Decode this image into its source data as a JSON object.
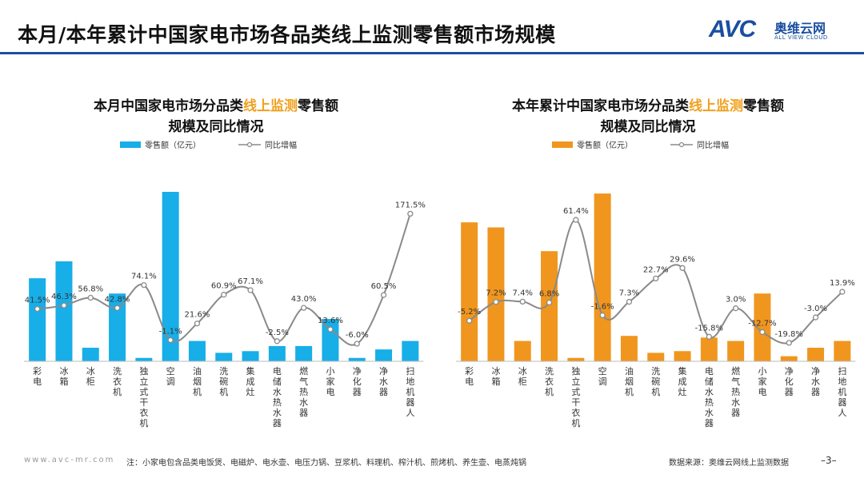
{
  "page": {
    "title": "本月/本年累计中国家电市场各品类线上监测零售额市场规模",
    "logo_mark": "AVC",
    "logo_cn": "奥维云网",
    "logo_en": "ALL VIEW CLOUD"
  },
  "footer": {
    "website": "www.avc-mr.com",
    "note": "注：小家电包含品类电饭煲、电磁炉、电水壶、电压力锅、豆浆机、料理机、榨汁机、煎烤机、养生壶、电蒸炖锅",
    "source": "数据来源：奥维云网线上监测数据",
    "page_number": "–3–"
  },
  "chart_data": [
    {
      "type": "bar",
      "title_parts": [
        "本月中国家电市场分品类",
        "线上监测",
        "零售额"
      ],
      "title_line2": "规模及同比情况",
      "bar_color": "#18aee8",
      "highlight_color": "#f0a01e",
      "legend_bar": "零售额（亿元）",
      "legend_line": "同比增幅",
      "categories": [
        "彩电",
        "冰箱",
        "冰柜",
        "洗衣机",
        "独立式干衣机",
        "空调",
        "油烟机",
        "洗碗机",
        "集成灶",
        "电储水热水器",
        "燃气热水器",
        "小家电",
        "净化器",
        "净水器",
        "扫地机器人"
      ],
      "values": [
        49,
        59,
        8,
        40,
        2,
        100,
        12,
        5,
        6,
        9,
        9,
        25,
        2,
        7,
        12
      ],
      "growth": [
        41.5,
        46.3,
        56.8,
        42.8,
        74.1,
        -1.1,
        21.6,
        60.9,
        67.1,
        -2.5,
        43.0,
        13.6,
        -6.0,
        60.5,
        171.5
      ],
      "growth_labels": [
        "41.5%",
        "46.3%",
        "56.8%",
        "42.8%",
        "74.1%",
        "-1.1%",
        "21.6%",
        "60.9%",
        "67.1%",
        "-2.5%",
        "43.0%",
        "13.6%",
        "-6.0%",
        "60.5%",
        "171.5%"
      ],
      "ylim": [
        0,
        100
      ],
      "growth_range": [
        -30,
        185
      ]
    },
    {
      "type": "bar",
      "title_parts": [
        "本年累计中国家电市场分品类",
        "线上监测",
        "零售额"
      ],
      "title_line2": "规模及同比情况",
      "bar_color": "#f0961e",
      "highlight_color": "#f0a01e",
      "legend_bar": "零售额（亿元）",
      "legend_line": "同比增幅",
      "categories": [
        "彩电",
        "冰箱",
        "冰柜",
        "洗衣机",
        "独立式干衣机",
        "空调",
        "油烟机",
        "洗碗机",
        "集成灶",
        "电储水热水器",
        "燃气热水器",
        "小家电",
        "净化器",
        "净水器",
        "扫地机器人"
      ],
      "values": [
        82,
        79,
        12,
        65,
        2,
        99,
        15,
        5,
        6,
        14,
        12,
        40,
        3,
        8,
        12
      ],
      "growth": [
        -5.2,
        7.2,
        7.4,
        6.8,
        61.4,
        -1.6,
        7.3,
        22.7,
        29.6,
        -15.8,
        3.0,
        -12.7,
        -19.8,
        -3.0,
        13.9
      ],
      "growth_labels": [
        "-5.2%",
        "7.2%",
        "7.4%",
        "6.8%",
        "61.4%",
        "-1.6%",
        "7.3%",
        "22.7%",
        "29.6%",
        "-15.8%",
        "3.0%",
        "-12.7%",
        "-19.8%",
        "-3.0%",
        "13.9%"
      ],
      "ylim": [
        0,
        100
      ],
      "growth_range": [
        -32,
        72
      ]
    }
  ]
}
